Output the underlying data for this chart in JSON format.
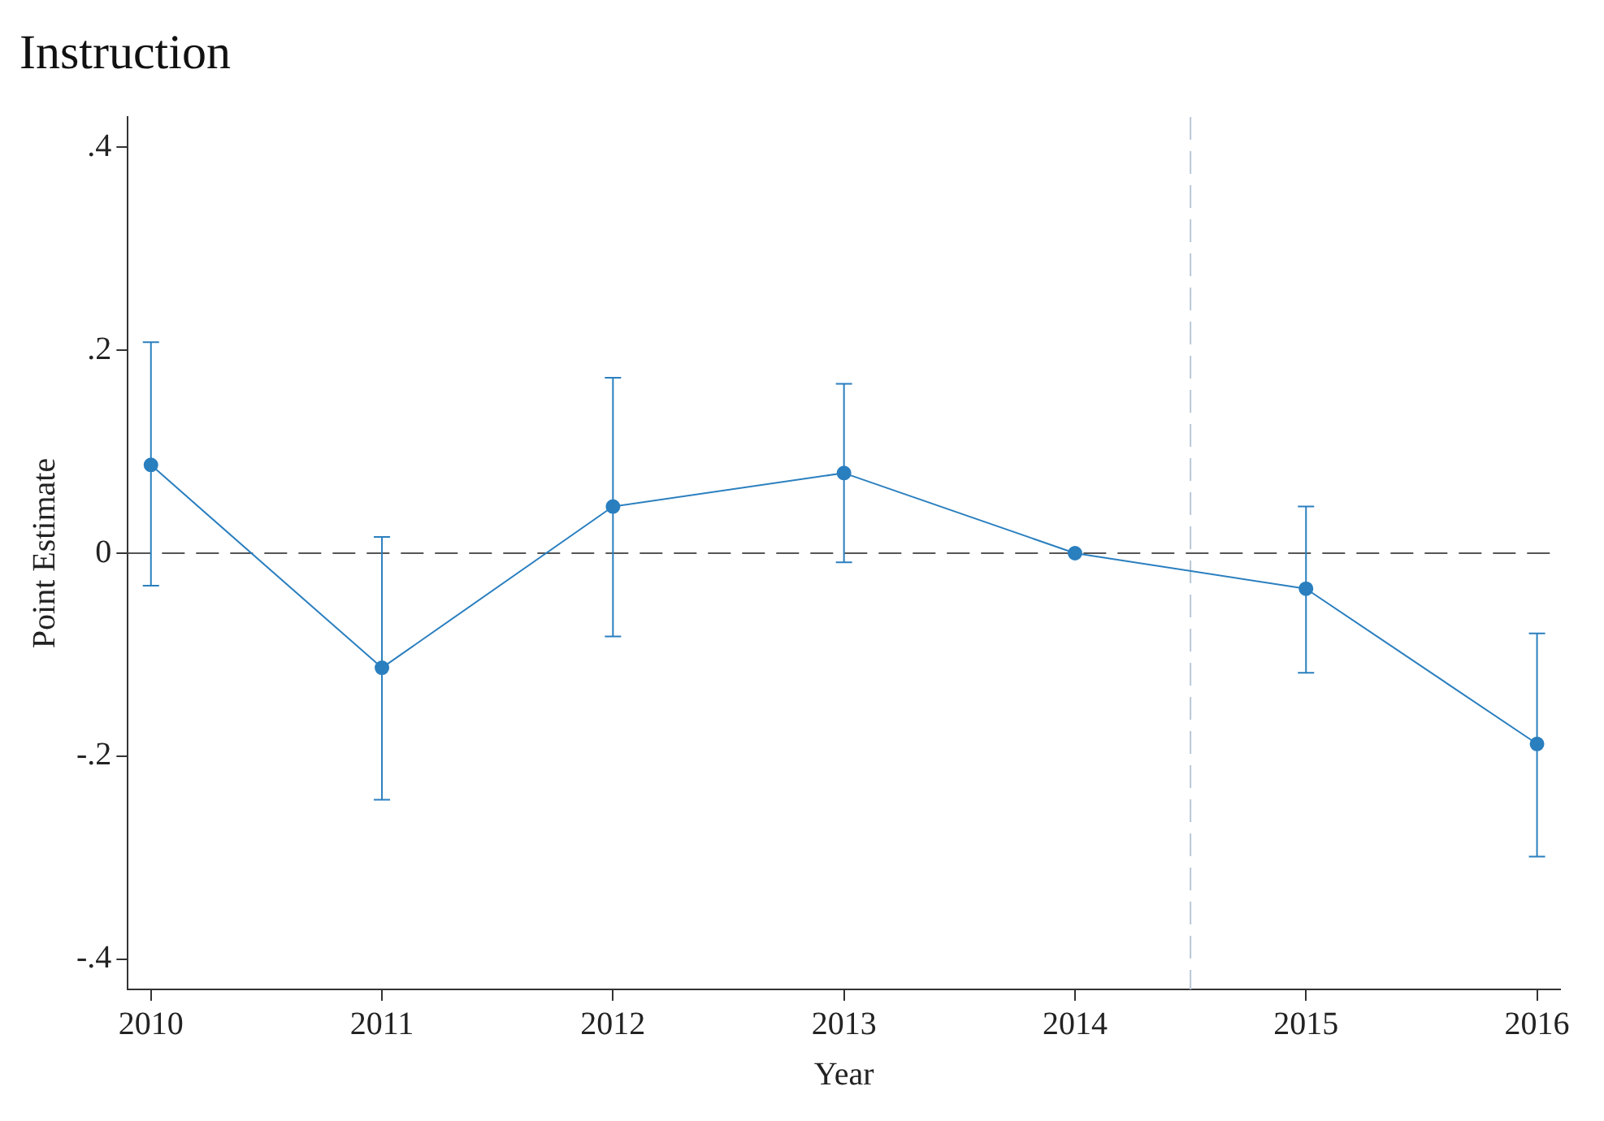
{
  "chart_data": {
    "type": "line",
    "title": "Instruction",
    "xlabel": "Year",
    "ylabel": "Point Estimate",
    "x": [
      2010,
      2011,
      2012,
      2013,
      2014,
      2015,
      2016
    ],
    "series": [
      {
        "color": "#2a7fbf",
        "values": [
          0.087,
          -0.113,
          0.046,
          0.079,
          0,
          -0.035,
          -0.188
        ],
        "errors": [
          [
            -0.032,
            0.208
          ],
          [
            -0.243,
            0.016
          ],
          [
            -0.082,
            0.173
          ],
          [
            -0.009,
            0.167
          ],
          null,
          [
            -0.118,
            0.046
          ],
          [
            -0.299,
            -0.079
          ]
        ]
      }
    ],
    "marker": "circle",
    "line_style": "solid",
    "grid": false,
    "legend": false,
    "xlim": [
      2009.9,
      2016.1
    ],
    "xticks": [
      2010,
      2011,
      2012,
      2013,
      2014,
      2015,
      2016
    ],
    "ylim": [
      -0.43,
      0.43
    ],
    "yticks": [
      {
        "value": -0.4,
        "label": "-.4"
      },
      {
        "value": -0.2,
        "label": "-.2"
      },
      0,
      {
        "value": 0.2,
        "label": ".2"
      },
      {
        "value": 0.4,
        "label": ".4"
      }
    ],
    "ref_lines": [
      {
        "axis": "y",
        "value": 0,
        "color": "#555555",
        "line_style": "dashed"
      },
      {
        "axis": "x",
        "value": 2014.5,
        "color": "#b8c8d8",
        "line_style": "dashed"
      }
    ]
  }
}
